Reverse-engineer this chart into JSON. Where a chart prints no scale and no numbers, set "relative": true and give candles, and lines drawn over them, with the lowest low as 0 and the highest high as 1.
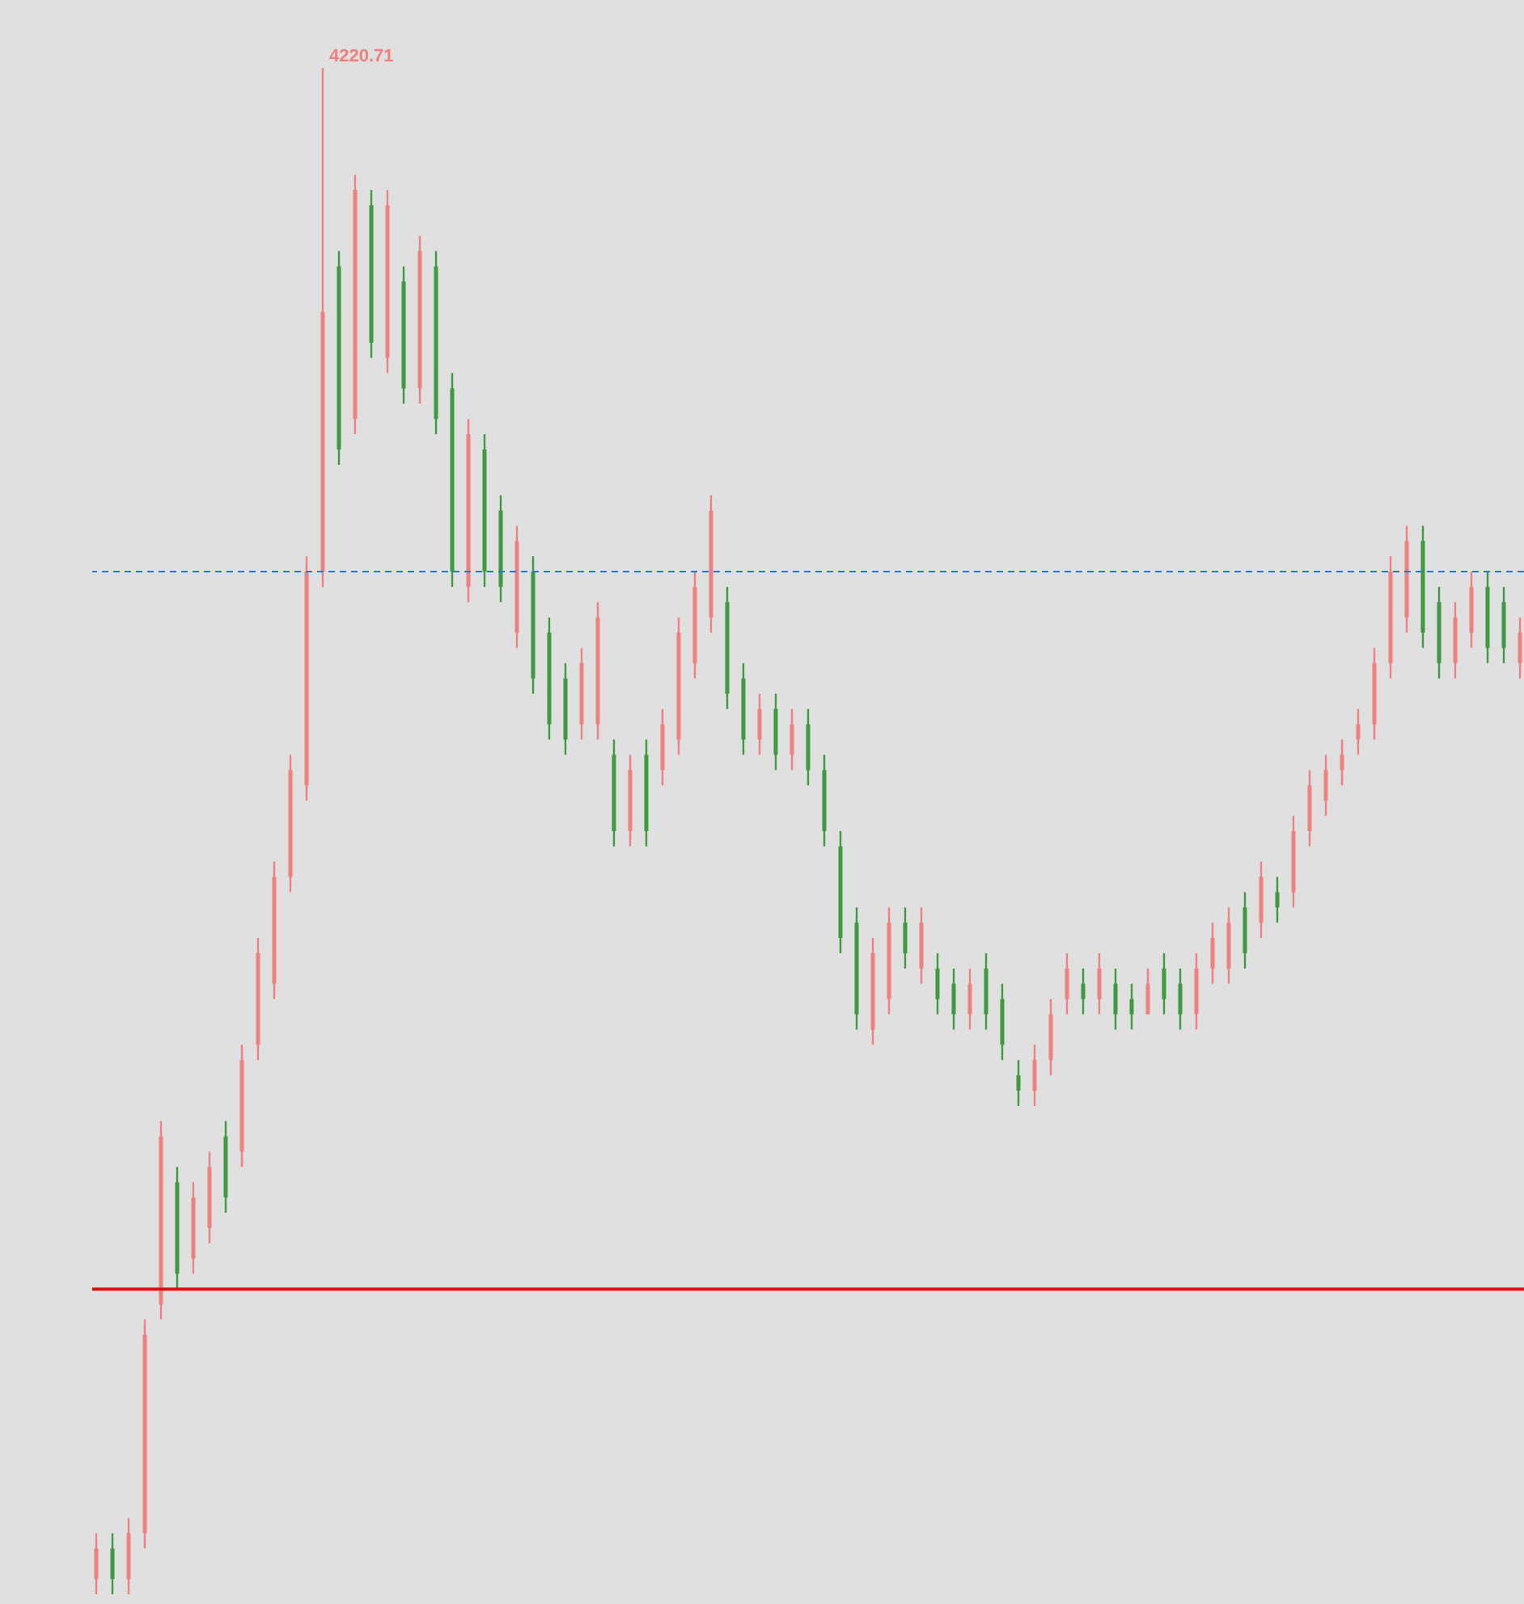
{
  "chart_data": {
    "type": "candlestick",
    "relative": true,
    "tick_labels": false,
    "categories": [
      null,
      null,
      null,
      null,
      null,
      null,
      null,
      null,
      null,
      null,
      null,
      null,
      null,
      null,
      null,
      null,
      null,
      null,
      null,
      null,
      null,
      null,
      null,
      null,
      null,
      null,
      null,
      null,
      null,
      null,
      null,
      null,
      null,
      null,
      null,
      null,
      null,
      null,
      null,
      null,
      null,
      null,
      null,
      null,
      null,
      null,
      null,
      null,
      null,
      null,
      null,
      null,
      null,
      null,
      null,
      null,
      null,
      null,
      null,
      null,
      null,
      null,
      null,
      null,
      null,
      null,
      null,
      null,
      null,
      null,
      null,
      null,
      null,
      null,
      null,
      null,
      null,
      null,
      null,
      null,
      null,
      null,
      null,
      null,
      null,
      null,
      null,
      null,
      null
    ],
    "ohlc": [
      [
        0.01,
        0.04,
        0.0,
        0.03
      ],
      [
        0.03,
        0.04,
        0.0,
        0.01
      ],
      [
        0.01,
        0.05,
        0.0,
        0.04
      ],
      [
        0.04,
        0.18,
        0.03,
        0.17
      ],
      [
        0.19,
        0.31,
        0.18,
        0.3
      ],
      [
        0.27,
        0.28,
        0.2,
        0.21
      ],
      [
        0.22,
        0.27,
        0.21,
        0.26
      ],
      [
        0.24,
        0.29,
        0.23,
        0.28
      ],
      [
        0.3,
        0.31,
        0.25,
        0.26
      ],
      [
        0.29,
        0.36,
        0.28,
        0.35
      ],
      [
        0.36,
        0.43,
        0.35,
        0.42
      ],
      [
        0.4,
        0.48,
        0.39,
        0.47
      ],
      [
        0.47,
        0.55,
        0.46,
        0.54
      ],
      [
        0.53,
        0.68,
        0.52,
        0.67
      ],
      [
        0.67,
        1.0,
        0.66,
        0.84
      ],
      [
        0.87,
        0.88,
        0.74,
        0.75
      ],
      [
        0.77,
        0.93,
        0.76,
        0.92
      ],
      [
        0.91,
        0.92,
        0.81,
        0.82
      ],
      [
        0.81,
        0.92,
        0.8,
        0.91
      ],
      [
        0.86,
        0.87,
        0.78,
        0.79
      ],
      [
        0.79,
        0.89,
        0.78,
        0.88
      ],
      [
        0.87,
        0.88,
        0.76,
        0.77
      ],
      [
        0.79,
        0.8,
        0.66,
        0.67
      ],
      [
        0.66,
        0.77,
        0.65,
        0.76
      ],
      [
        0.75,
        0.76,
        0.66,
        0.67
      ],
      [
        0.71,
        0.72,
        0.65,
        0.66
      ],
      [
        0.63,
        0.7,
        0.62,
        0.69
      ],
      [
        0.67,
        0.68,
        0.59,
        0.6
      ],
      [
        0.63,
        0.64,
        0.56,
        0.57
      ],
      [
        0.6,
        0.61,
        0.55,
        0.56
      ],
      [
        0.57,
        0.62,
        0.56,
        0.61
      ],
      [
        0.57,
        0.65,
        0.56,
        0.64
      ],
      [
        0.55,
        0.56,
        0.49,
        0.5
      ],
      [
        0.5,
        0.55,
        0.49,
        0.54
      ],
      [
        0.55,
        0.56,
        0.49,
        0.5
      ],
      [
        0.54,
        0.58,
        0.53,
        0.57
      ],
      [
        0.56,
        0.64,
        0.55,
        0.63
      ],
      [
        0.61,
        0.67,
        0.6,
        0.66
      ],
      [
        0.64,
        0.72,
        0.63,
        0.71
      ],
      [
        0.65,
        0.66,
        0.58,
        0.59
      ],
      [
        0.6,
        0.61,
        0.55,
        0.56
      ],
      [
        0.56,
        0.59,
        0.55,
        0.58
      ],
      [
        0.58,
        0.59,
        0.54,
        0.55
      ],
      [
        0.55,
        0.58,
        0.54,
        0.57
      ],
      [
        0.57,
        0.58,
        0.53,
        0.54
      ],
      [
        0.54,
        0.55,
        0.49,
        0.5
      ],
      [
        0.49,
        0.5,
        0.42,
        0.43
      ],
      [
        0.44,
        0.45,
        0.37,
        0.38
      ],
      [
        0.37,
        0.43,
        0.36,
        0.42
      ],
      [
        0.39,
        0.45,
        0.38,
        0.44
      ],
      [
        0.44,
        0.45,
        0.41,
        0.42
      ],
      [
        0.41,
        0.45,
        0.4,
        0.44
      ],
      [
        0.41,
        0.42,
        0.38,
        0.39
      ],
      [
        0.4,
        0.41,
        0.37,
        0.38
      ],
      [
        0.38,
        0.41,
        0.37,
        0.4
      ],
      [
        0.41,
        0.42,
        0.37,
        0.38
      ],
      [
        0.39,
        0.4,
        0.35,
        0.36
      ],
      [
        0.34,
        0.35,
        0.32,
        0.33
      ],
      [
        0.33,
        0.36,
        0.32,
        0.35
      ],
      [
        0.35,
        0.39,
        0.34,
        0.38
      ],
      [
        0.39,
        0.42,
        0.38,
        0.41
      ],
      [
        0.4,
        0.41,
        0.38,
        0.39
      ],
      [
        0.39,
        0.42,
        0.38,
        0.41
      ],
      [
        0.4,
        0.41,
        0.37,
        0.38
      ],
      [
        0.39,
        0.4,
        0.37,
        0.38
      ],
      [
        0.38,
        0.41,
        0.38,
        0.4
      ],
      [
        0.41,
        0.42,
        0.38,
        0.39
      ],
      [
        0.4,
        0.41,
        0.37,
        0.38
      ],
      [
        0.38,
        0.42,
        0.37,
        0.41
      ],
      [
        0.41,
        0.44,
        0.4,
        0.43
      ],
      [
        0.41,
        0.45,
        0.4,
        0.44
      ],
      [
        0.45,
        0.46,
        0.41,
        0.42
      ],
      [
        0.44,
        0.48,
        0.43,
        0.47
      ],
      [
        0.46,
        0.47,
        0.44,
        0.45
      ],
      [
        0.46,
        0.51,
        0.45,
        0.5
      ],
      [
        0.5,
        0.54,
        0.49,
        0.53
      ],
      [
        0.52,
        0.55,
        0.51,
        0.54
      ],
      [
        0.54,
        0.56,
        0.53,
        0.55
      ],
      [
        0.56,
        0.58,
        0.55,
        0.57
      ],
      [
        0.57,
        0.62,
        0.56,
        0.61
      ],
      [
        0.61,
        0.68,
        0.6,
        0.67
      ],
      [
        0.64,
        0.7,
        0.63,
        0.69
      ],
      [
        0.69,
        0.7,
        0.62,
        0.63
      ],
      [
        0.65,
        0.66,
        0.6,
        0.61
      ],
      [
        0.61,
        0.65,
        0.6,
        0.64
      ],
      [
        0.63,
        0.67,
        0.62,
        0.66
      ],
      [
        0.66,
        0.67,
        0.61,
        0.62
      ],
      [
        0.65,
        0.66,
        0.61,
        0.62
      ],
      [
        0.61,
        0.64,
        0.6,
        0.63
      ]
    ],
    "colors": [
      "#f08080",
      "#3f9a3f",
      "#f08080",
      "#f08080",
      "#f08080",
      "#3f9a3f",
      "#f08080",
      "#f08080",
      "#3f9a3f",
      "#f08080",
      "#f08080",
      "#f08080",
      "#f08080",
      "#f08080",
      "#f08080",
      "#3f9a3f",
      "#f08080",
      "#3f9a3f",
      "#f08080",
      "#3f9a3f",
      "#f08080",
      "#3f9a3f",
      "#3f9a3f",
      "#f08080",
      "#3f9a3f",
      "#3f9a3f",
      "#f08080",
      "#3f9a3f",
      "#3f9a3f",
      "#3f9a3f",
      "#f08080",
      "#f08080",
      "#3f9a3f",
      "#f08080",
      "#3f9a3f",
      "#f08080",
      "#f08080",
      "#f08080",
      "#f08080",
      "#3f9a3f",
      "#3f9a3f",
      "#f08080",
      "#3f9a3f",
      "#f08080",
      "#3f9a3f",
      "#3f9a3f",
      "#3f9a3f",
      "#3f9a3f",
      "#f08080",
      "#f08080",
      "#3f9a3f",
      "#f08080",
      "#3f9a3f",
      "#3f9a3f",
      "#f08080",
      "#3f9a3f",
      "#3f9a3f",
      "#3f9a3f",
      "#f08080",
      "#f08080",
      "#f08080",
      "#3f9a3f",
      "#f08080",
      "#3f9a3f",
      "#3f9a3f",
      "#f08080",
      "#3f9a3f",
      "#3f9a3f",
      "#f08080",
      "#f08080",
      "#f08080",
      "#3f9a3f",
      "#f08080",
      "#3f9a3f",
      "#f08080",
      "#f08080",
      "#f08080",
      "#f08080",
      "#f08080",
      "#f08080",
      "#f08080",
      "#f08080",
      "#3f9a3f",
      "#3f9a3f",
      "#f08080",
      "#f08080",
      "#3f9a3f",
      "#3f9a3f",
      "#f08080"
    ],
    "ref_lines": [
      {
        "axis": "y",
        "value": 0.67,
        "color": "#1e78d8",
        "line_style": "dashed"
      },
      {
        "axis": "y",
        "value": 0.2,
        "color": "#e01010",
        "line_style": "solid"
      }
    ],
    "annotations": [
      "4220.71"
    ]
  }
}
